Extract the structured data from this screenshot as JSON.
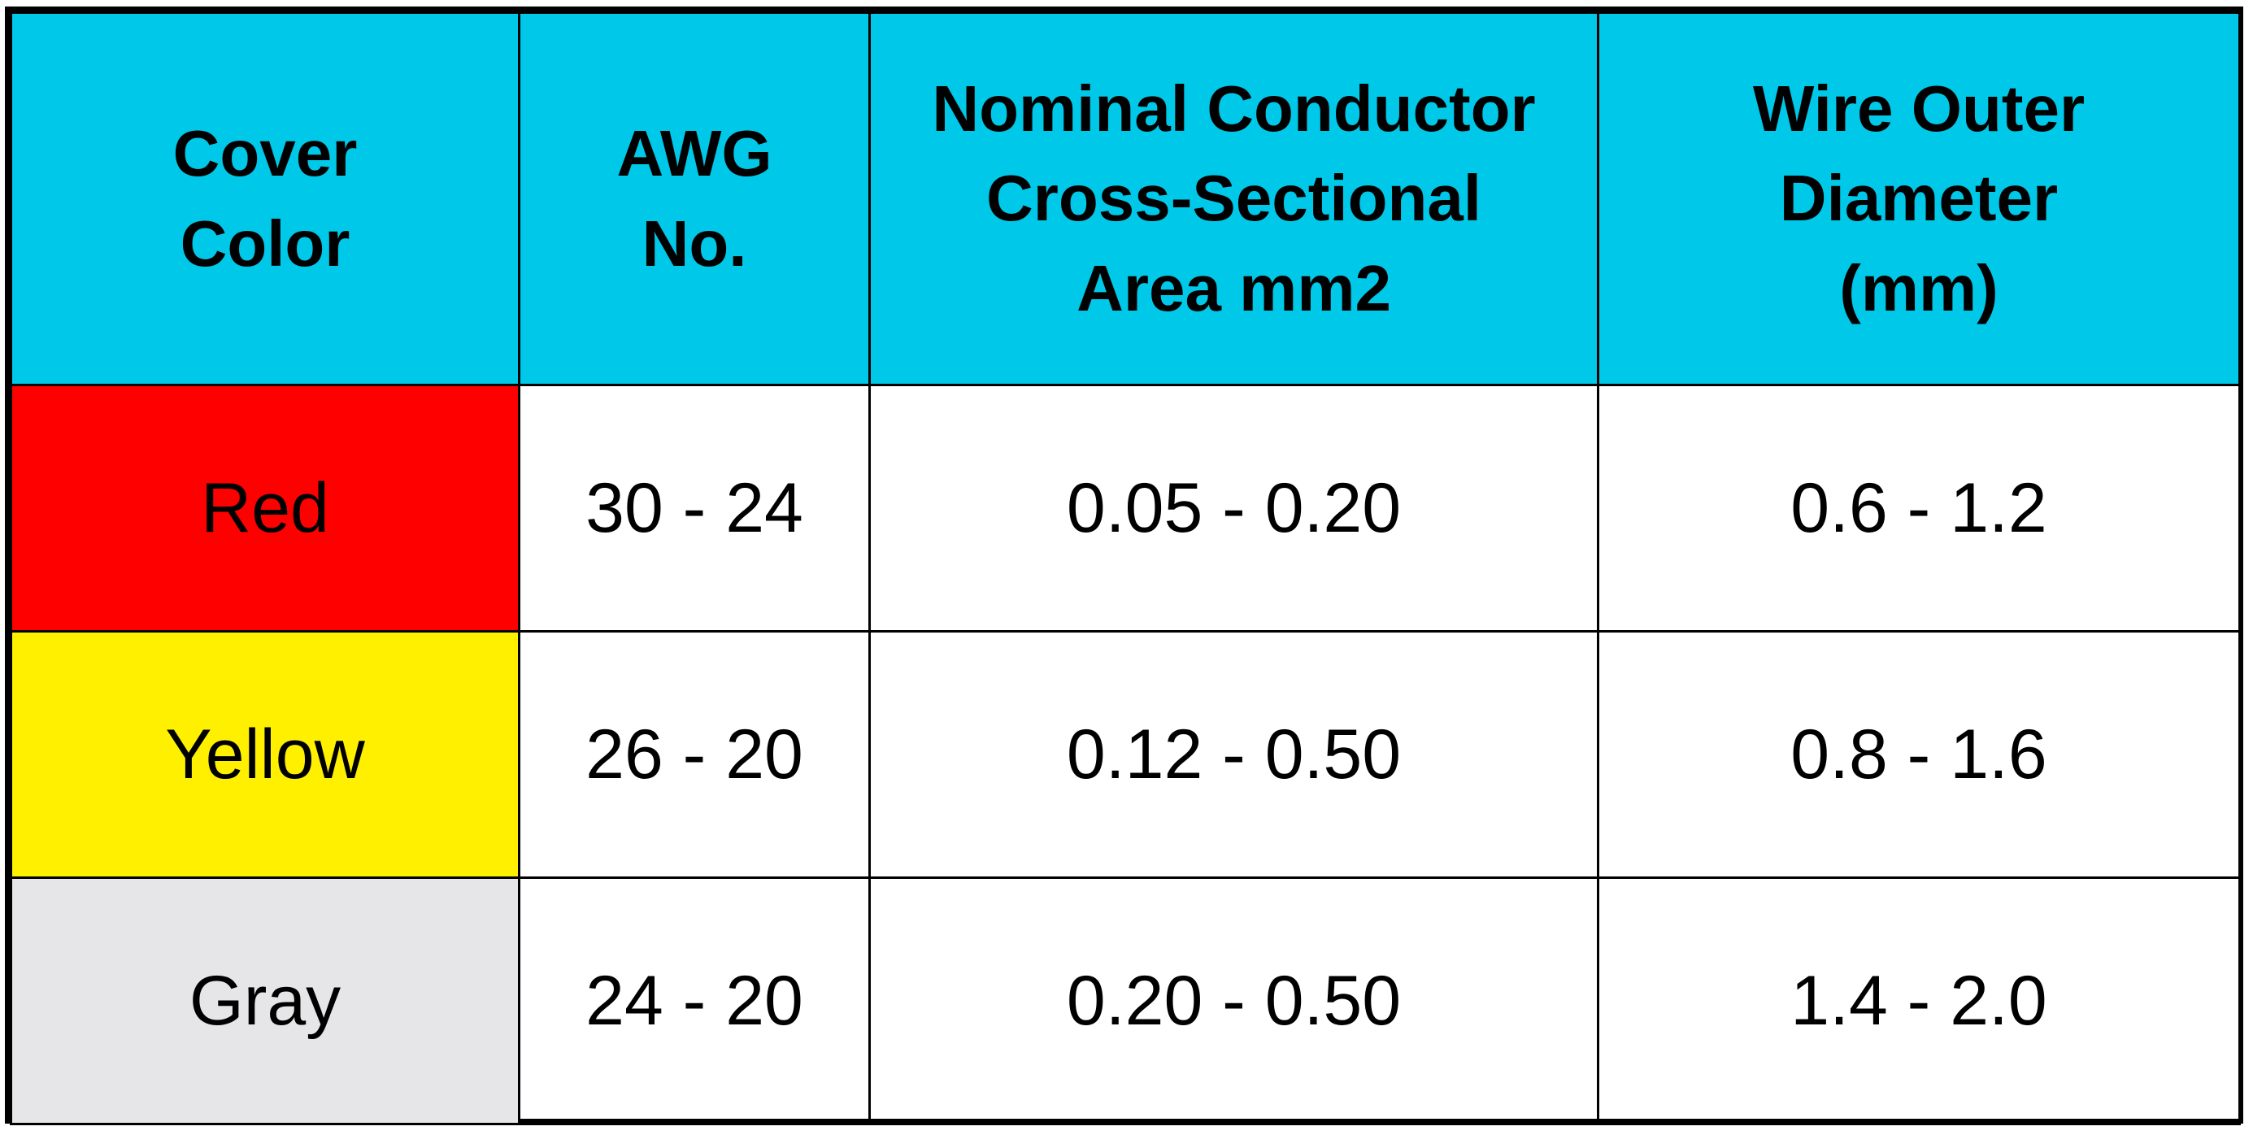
{
  "colors": {
    "header_bg": "#00c8e8",
    "border": "#000000"
  },
  "headers": [
    {
      "lines": [
        "Cover",
        "Color"
      ]
    },
    {
      "lines": [
        "AWG",
        "No."
      ]
    },
    {
      "lines": [
        "Nominal Conductor",
        "Cross-Sectional",
        "Area mm2"
      ]
    },
    {
      "lines": [
        "Wire Outer",
        "Diameter",
        "(mm)"
      ]
    }
  ],
  "rows": [
    {
      "color_name": "Red",
      "swatch": "#ff0000",
      "awg": "30 - 24",
      "area": "0.05 - 0.20",
      "diameter": "0.6 - 1.2"
    },
    {
      "color_name": "Yellow",
      "swatch": "#fff000",
      "awg": "26 - 20",
      "area": "0.12 - 0.50",
      "diameter": "0.8 - 1.6"
    },
    {
      "color_name": "Gray",
      "swatch": "#e6e6e8",
      "awg": "24 - 20",
      "area": "0.20 - 0.50",
      "diameter": "1.4 - 2.0"
    }
  ]
}
